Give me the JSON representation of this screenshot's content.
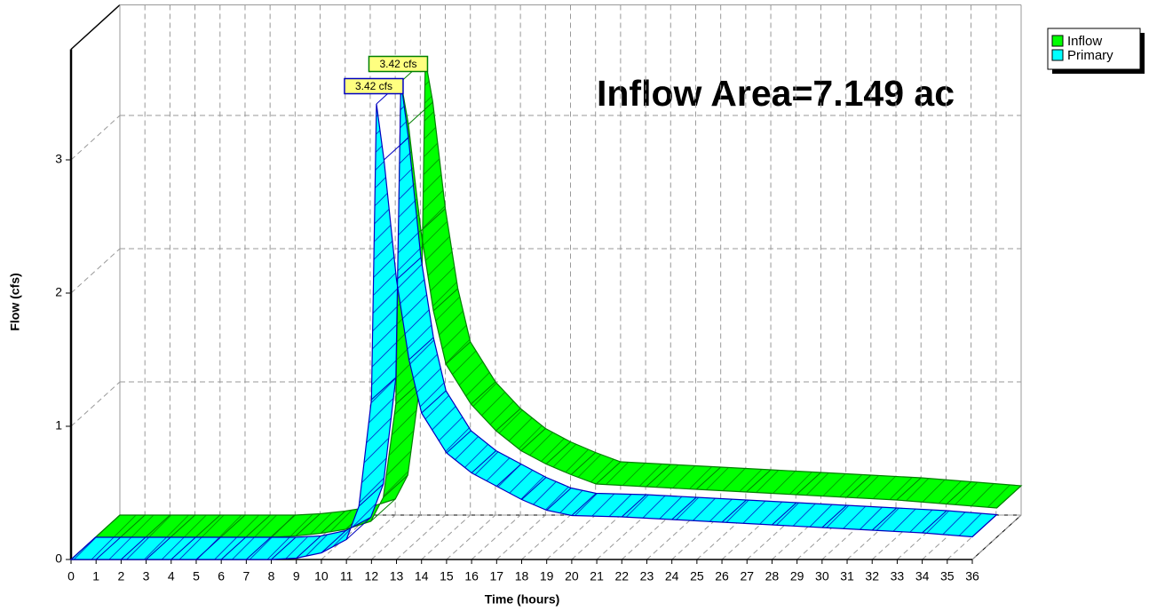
{
  "chart_data": {
    "type": "ribbon3d",
    "annotation": "Inflow Area=7.149 ac",
    "x_label": "Time  (hours)",
    "y_label": "Flow  (cfs)",
    "xlim": [
      0,
      36
    ],
    "xticks": [
      0,
      1,
      2,
      3,
      4,
      5,
      6,
      7,
      8,
      9,
      10,
      11,
      12,
      13,
      14,
      15,
      16,
      17,
      18,
      19,
      20,
      21,
      22,
      23,
      24,
      25,
      26,
      27,
      28,
      29,
      30,
      31,
      32,
      33,
      34,
      35,
      36
    ],
    "ylim": [
      0,
      3.83
    ],
    "yticks": [
      0,
      1,
      2,
      3
    ],
    "grid": true,
    "legend": "top-right",
    "x": [
      0,
      1,
      2,
      3,
      4,
      5,
      6,
      7,
      8,
      9,
      10,
      11,
      11.5,
      12,
      12.2,
      12.5,
      13,
      13.5,
      14,
      15,
      16,
      17,
      18,
      19,
      20,
      22,
      24,
      26,
      28,
      30,
      32,
      34,
      36
    ],
    "series": [
      {
        "name": "Inflow",
        "color": "#00ff00",
        "hatch": "#008000",
        "values": [
          0,
          0,
          0,
          0,
          0,
          0,
          0,
          0,
          0.01,
          0.03,
          0.06,
          0.12,
          0.3,
          1.0,
          3.42,
          3.1,
          2.3,
          1.7,
          1.3,
          1.0,
          0.8,
          0.65,
          0.55,
          0.47,
          0.4,
          0.38,
          0.36,
          0.34,
          0.32,
          0.3,
          0.28,
          0.25,
          0.22
        ],
        "value_labels": [
          null,
          null,
          null,
          null,
          null,
          null,
          null,
          null,
          null,
          null,
          null,
          null,
          null,
          null,
          "3.42 cfs",
          null,
          null,
          null,
          null,
          null,
          null,
          null,
          null,
          null,
          null,
          null,
          null,
          null,
          null,
          null,
          null,
          null,
          null
        ]
      },
      {
        "name": "Primary",
        "color": "#00ffff",
        "hatch": "#0000c0",
        "values": [
          0,
          0,
          0,
          0,
          0,
          0,
          0,
          0,
          0,
          0.01,
          0.05,
          0.15,
          0.4,
          1.2,
          3.42,
          3.0,
          2.1,
          1.5,
          1.1,
          0.8,
          0.65,
          0.55,
          0.45,
          0.37,
          0.33,
          0.32,
          0.3,
          0.28,
          0.26,
          0.24,
          0.22,
          0.2,
          0.17
        ],
        "value_labels": [
          null,
          null,
          null,
          null,
          null,
          null,
          null,
          null,
          null,
          null,
          null,
          null,
          null,
          null,
          "3.42 cfs",
          null,
          null,
          null,
          null,
          null,
          null,
          null,
          null,
          null,
          null,
          null,
          null,
          null,
          null,
          null,
          null,
          null,
          null
        ]
      }
    ]
  }
}
